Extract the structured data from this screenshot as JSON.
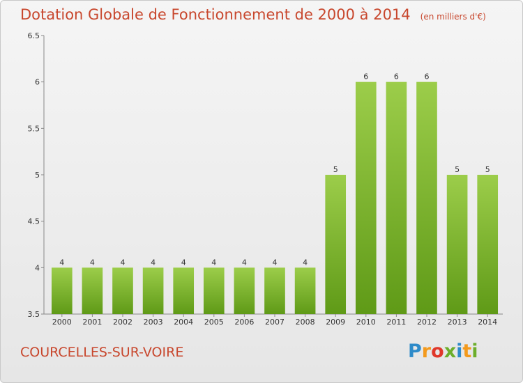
{
  "title": "Dotation Globale de Fonctionnement de 2000 à 2014",
  "unit_note": "(en milliers d'€)",
  "commune": "COURCELLES-SUR-VOIRE",
  "logo": {
    "letters": [
      "P",
      "r",
      "o",
      "x",
      "i",
      "t",
      "i"
    ],
    "colors": [
      "#2e8bc9",
      "#f39a1d",
      "#e0382b",
      "#6cae2b",
      "#2e8bc9",
      "#f39a1d",
      "#6cae2b"
    ]
  },
  "colors": {
    "title": "#c8472d",
    "bar_top": "#9ccd4a",
    "bar_bottom": "#5f9a17"
  },
  "chart_data": {
    "type": "bar",
    "title": "Dotation Globale de Fonctionnement de 2000 à 2014",
    "categories": [
      "2000",
      "2001",
      "2002",
      "2003",
      "2004",
      "2005",
      "2006",
      "2007",
      "2008",
      "2009",
      "2010",
      "2011",
      "2012",
      "2013",
      "2014"
    ],
    "values": [
      4,
      4,
      4,
      4,
      4,
      4,
      4,
      4,
      4,
      5,
      6,
      6,
      6,
      5,
      5
    ],
    "data_labels": [
      "4",
      "4",
      "4",
      "4",
      "4",
      "4",
      "4",
      "4",
      "4",
      "5",
      "6",
      "6",
      "6",
      "5",
      "5"
    ],
    "ylim": [
      3.5,
      6.5
    ],
    "yticks": [
      3.5,
      4,
      4.5,
      5,
      5.5,
      6,
      6.5
    ],
    "ytick_labels": [
      "3.5",
      "4",
      "4.5",
      "5",
      "5.5",
      "6",
      "6.5"
    ],
    "xlabel": "",
    "ylabel": "",
    "grid": false,
    "legend": "none"
  }
}
